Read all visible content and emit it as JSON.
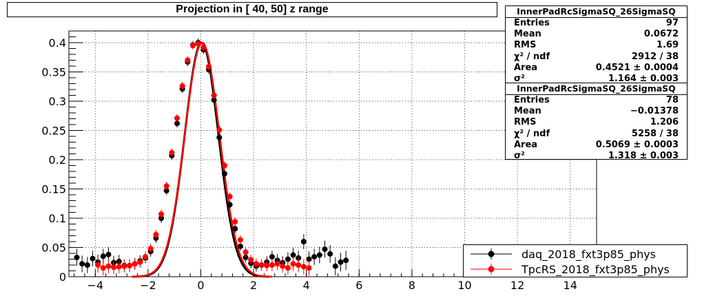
{
  "chart_data": {
    "type": "scatter",
    "title": "Projection in [  40,  50] z range",
    "xlim": [
      -5.0,
      15.0
    ],
    "ylim": [
      0,
      0.42
    ],
    "x_ticks": [
      -4,
      -2,
      0,
      2,
      4,
      6,
      8,
      10,
      12,
      14
    ],
    "y_ticks": [
      0,
      0.05,
      0.1,
      0.15,
      0.2,
      0.25,
      0.3,
      0.35,
      0.4
    ],
    "y_tick_labels": [
      "0",
      "0.05",
      "0.1",
      "0.15",
      "0.2",
      "0.25",
      "0.3",
      "0.35",
      "0.4"
    ],
    "grid": true,
    "legend_position": "bottom-right",
    "series": [
      {
        "name": "daq_2018_fxt3p85_phys",
        "color": "#000000",
        "x": [
          -4.7,
          -4.5,
          -4.3,
          -4.1,
          -3.9,
          -3.7,
          -3.5,
          -3.3,
          -3.1,
          -2.9,
          -2.7,
          -2.5,
          -2.3,
          -2.1,
          -1.9,
          -1.7,
          -1.5,
          -1.3,
          -1.1,
          -0.9,
          -0.7,
          -0.5,
          -0.3,
          -0.1,
          0.1,
          0.3,
          0.5,
          0.7,
          0.9,
          1.1,
          1.3,
          1.5,
          1.7,
          1.9,
          2.1,
          2.3,
          2.5,
          2.7,
          2.9,
          3.1,
          3.3,
          3.5,
          3.7,
          3.9,
          4.1,
          4.3,
          4.5,
          4.7,
          4.9,
          5.1,
          5.3,
          5.5
        ],
        "y": [
          0.033,
          0.022,
          0.02,
          0.031,
          0.025,
          0.035,
          0.038,
          0.024,
          0.026,
          0.019,
          0.019,
          0.022,
          0.027,
          0.032,
          0.043,
          0.066,
          0.1,
          0.147,
          0.207,
          0.262,
          0.321,
          0.367,
          0.396,
          0.4,
          0.388,
          0.354,
          0.302,
          0.238,
          0.176,
          0.123,
          0.082,
          0.052,
          0.033,
          0.023,
          0.018,
          0.02,
          0.025,
          0.034,
          0.028,
          0.024,
          0.03,
          0.037,
          0.032,
          0.06,
          0.03,
          0.034,
          0.037,
          0.047,
          0.039,
          0.018,
          0.025,
          0.028
        ]
      },
      {
        "name": "TpcRS_2018_fxt3p85_phys",
        "color": "#ff0000",
        "x": [
          -3.9,
          -3.7,
          -3.5,
          -3.3,
          -3.1,
          -2.9,
          -2.7,
          -2.5,
          -2.3,
          -2.1,
          -1.9,
          -1.7,
          -1.5,
          -1.3,
          -1.1,
          -0.9,
          -0.7,
          -0.5,
          -0.3,
          -0.1,
          0.1,
          0.3,
          0.5,
          0.7,
          0.9,
          1.1,
          1.3,
          1.5,
          1.7,
          1.9,
          2.1,
          2.3,
          2.5,
          2.7,
          2.9,
          3.1,
          3.3,
          3.5,
          3.7,
          3.9,
          4.1
        ],
        "y": [
          0.02,
          0.015,
          0.018,
          0.016,
          0.017,
          0.018,
          0.019,
          0.022,
          0.025,
          0.034,
          0.048,
          0.072,
          0.107,
          0.155,
          0.212,
          0.271,
          0.326,
          0.37,
          0.395,
          0.398,
          0.392,
          0.359,
          0.31,
          0.251,
          0.19,
          0.137,
          0.094,
          0.063,
          0.042,
          0.029,
          0.022,
          0.02,
          0.019,
          0.02,
          0.022,
          0.018,
          0.015,
          0.022,
          0.02,
          0.017,
          0.015
        ]
      }
    ]
  },
  "stats_boxes": [
    {
      "title": "InnerPadRcSigmaSQ_26SigmaSQ",
      "rows": [
        {
          "label": "Entries",
          "value": "97"
        },
        {
          "label": "Mean",
          "value": "0.0672"
        },
        {
          "label": "RMS",
          "value": "1.69"
        },
        {
          "label": "χ² / ndf",
          "value": "2912 / 38"
        },
        {
          "label": "Area",
          "value": "0.4521 ± 0.0004"
        },
        {
          "label": "σ²",
          "value": "1.164 ± 0.003"
        }
      ]
    },
    {
      "title": "InnerPadRcSigmaSQ_26SigmaSQ",
      "rows": [
        {
          "label": "Entries",
          "value": "78"
        },
        {
          "label": "Mean",
          "value": "−0.01378"
        },
        {
          "label": "RMS",
          "value": "1.206"
        },
        {
          "label": "χ² / ndf",
          "value": "5258 / 38"
        },
        {
          "label": "Area",
          "value": "0.5069 ± 0.0003"
        },
        {
          "label": "σ²",
          "value": "1.318 ± 0.003"
        }
      ]
    }
  ]
}
